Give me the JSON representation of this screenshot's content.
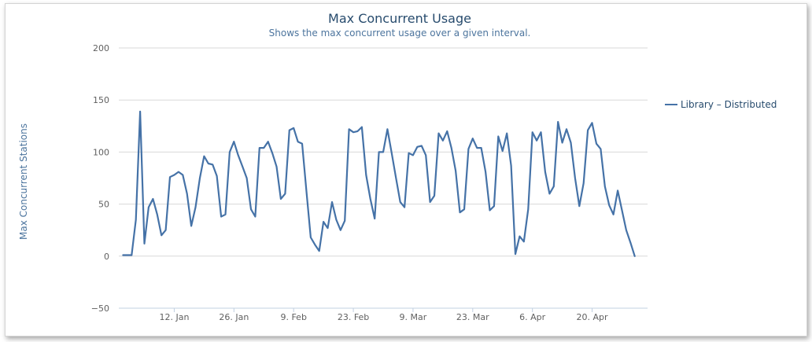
{
  "chart_data": {
    "type": "line",
    "title": "Max Concurrent Usage",
    "subtitle": "Shows the max concurrent usage over a given interval.",
    "ylabel": "Max Concurrent Stations",
    "xlabel": "",
    "ylim": [
      -50,
      200
    ],
    "yticks": [
      "200",
      "150",
      "100",
      "50",
      "0",
      "−50"
    ],
    "ytick_values": [
      200,
      150,
      100,
      50,
      0,
      -50
    ],
    "x_start": "2014-12-31",
    "xlim": [
      "2014-12-30",
      "2015-05-03"
    ],
    "xticks": [
      {
        "label": "12. Jan",
        "date": "2015-01-12"
      },
      {
        "label": "26. Jan",
        "date": "2015-01-26"
      },
      {
        "label": "9. Feb",
        "date": "2015-02-09"
      },
      {
        "label": "23. Feb",
        "date": "2015-02-23"
      },
      {
        "label": "9. Mar",
        "date": "2015-03-09"
      },
      {
        "label": "23. Mar",
        "date": "2015-03-23"
      },
      {
        "label": "6. Apr",
        "date": "2015-04-06"
      },
      {
        "label": "20. Apr",
        "date": "2015-04-20"
      }
    ],
    "grid": true,
    "legend_position": "right",
    "series": [
      {
        "name": "Library – Distributed",
        "color": "#4572a7",
        "values": [
          1,
          1,
          1,
          35,
          139,
          12,
          47,
          55,
          40,
          20,
          25,
          76,
          78,
          81,
          78,
          60,
          29,
          47,
          75,
          96,
          89,
          88,
          77,
          38,
          40,
          100,
          110,
          97,
          86,
          75,
          45,
          38,
          104,
          104,
          110,
          99,
          86,
          55,
          60,
          121,
          123,
          110,
          108,
          62,
          18,
          11,
          5,
          33,
          27,
          52,
          35,
          25,
          34,
          122,
          119,
          120,
          124,
          78,
          55,
          36,
          100,
          100,
          122,
          99,
          75,
          52,
          47,
          99,
          97,
          105,
          106,
          97,
          52,
          58,
          118,
          111,
          120,
          104,
          82,
          42,
          45,
          103,
          113,
          104,
          104,
          81,
          44,
          48,
          115,
          101,
          118,
          87,
          2,
          19,
          14,
          45,
          119,
          111,
          119,
          81,
          60,
          67,
          129,
          109,
          122,
          109,
          75,
          48,
          70,
          121,
          128,
          108,
          103,
          67,
          49,
          40,
          63,
          44,
          25,
          13,
          0
        ]
      }
    ]
  }
}
